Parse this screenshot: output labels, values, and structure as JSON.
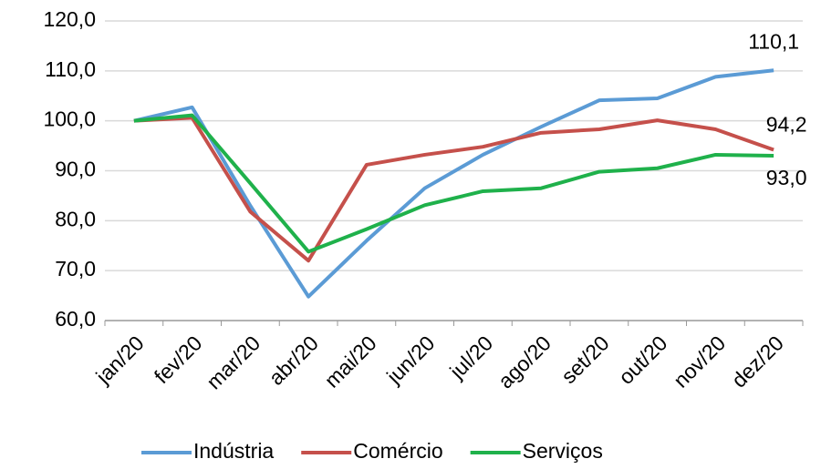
{
  "chart_data": {
    "type": "line",
    "categories": [
      "jan/20",
      "fev/20",
      "mar/20",
      "abr/20",
      "mai/20",
      "jun/20",
      "jul/20",
      "ago/20",
      "set/20",
      "out/20",
      "nov/20",
      "dez/20"
    ],
    "series": [
      {
        "name": "Indústria",
        "color": "#5b9bd5",
        "values": [
          100,
          102.7,
          83,
          64.8,
          76,
          86.5,
          93.2,
          98.8,
          104.1,
          104.5,
          108.8,
          110.1
        ],
        "value_labels": [
          null,
          null,
          null,
          null,
          null,
          null,
          null,
          null,
          null,
          null,
          null,
          "110,1"
        ]
      },
      {
        "name": "Comércio",
        "color": "#c5504b",
        "values": [
          100,
          100.6,
          81.8,
          72,
          91.2,
          93.2,
          94.8,
          97.6,
          98.3,
          100.1,
          98.3,
          94.2
        ],
        "value_labels": [
          null,
          null,
          null,
          null,
          null,
          null,
          null,
          null,
          null,
          null,
          null,
          "94,2"
        ]
      },
      {
        "name": "Serviços",
        "color": "#1fb14b",
        "values": [
          100,
          101.1,
          87.5,
          73.8,
          78.3,
          83.1,
          85.9,
          86.5,
          89.8,
          90.5,
          93.2,
          93.0
        ],
        "value_labels": [
          null,
          null,
          null,
          null,
          null,
          null,
          null,
          null,
          null,
          null,
          null,
          "93,0"
        ]
      }
    ],
    "ylim": [
      60,
      120
    ],
    "yticks": [
      {
        "value": 60,
        "label": "60,0"
      },
      {
        "value": 70,
        "label": "70,0"
      },
      {
        "value": 80,
        "label": "80,0"
      },
      {
        "value": 90,
        "label": "90,0"
      },
      {
        "value": 100,
        "label": "100,0"
      },
      {
        "value": 110,
        "label": "110,0"
      },
      {
        "value": 120,
        "label": "120,0"
      }
    ],
    "grid": true,
    "legend": "bottom"
  }
}
